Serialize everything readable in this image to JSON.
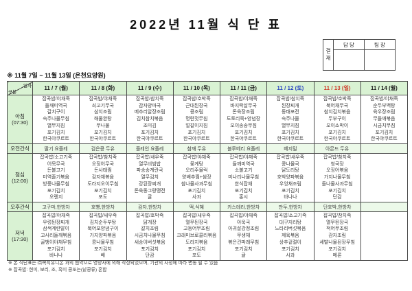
{
  "title": "2022년 11월 식 단 표",
  "approval": {
    "stamp_label": "결재",
    "columns": [
      "담 당",
      "팀 장"
    ]
  },
  "week_note": "※ 11월 7일 ~ 11월 13일 (은천요양원)",
  "colors": {
    "header_green": "#d9f2d3",
    "snack_green": "#ecf9e9",
    "saturday_blue": "#2b46c0",
    "sunday_red": "#d03a28",
    "border": "#4a4a4a"
  },
  "table": {
    "corner": {
      "top": "일자",
      "bottom": "구분"
    },
    "days": [
      {
        "label": "11 / 7 (월)",
        "color": "#1a1a1a"
      },
      {
        "label": "11 / 8 (화)",
        "color": "#1a1a1a"
      },
      {
        "label": "11 / 9 (수)",
        "color": "#1a1a1a"
      },
      {
        "label": "11 / 10 (목)",
        "color": "#1a1a1a"
      },
      {
        "label": "11 / 11 (금)",
        "color": "#1a1a1a"
      },
      {
        "label": "11 / 12 (토)",
        "color": "#2b46c0"
      },
      {
        "label": "11 / 13 (일)",
        "color": "#d03a28"
      },
      {
        "label": "11 / 14 (월)",
        "color": "#1a1a1a"
      }
    ],
    "rows": [
      {
        "label": "아침",
        "time": "(07:30)",
        "type": "meal",
        "cells": [
          [
            "잡곡밥/야채죽",
            "들깨미역국",
            "갈치구이",
            "숙주나물무침",
            "열무지짐",
            "포기김치",
            "한국야쿠르트"
          ],
          [
            "잡곡밥/야채죽",
            "쇠고기무국",
            "삼치조림",
            "해물완탕",
            "무나물",
            "포기김치",
            "한국야쿠르트"
          ],
          [
            "잡곡밥/참치죽",
            "감자양파국",
            "메추리알장조림",
            "김치참치볶음",
            "조미김",
            "포기김치",
            "한국야쿠르트"
          ],
          [
            "잡곡밥/호박죽",
            "근대된장국",
            "콩조림",
            "명란젓무침",
            "얼갈이지짐",
            "포기김치",
            "한국야쿠르트"
          ],
          [
            "잡곡밥/야채죽",
            "바지락살무국",
            "돈육장조림",
            "도토리묵+양념장",
            "오이송송무침",
            "포기김치",
            "한국야쿠르트"
          ],
          [
            "잡곡밥/참치죽",
            "된장찌개",
            "동태포전",
            "숙주나물",
            "열무지짐",
            "포기김치",
            "한국야쿠르트"
          ],
          [
            "잡곡밥/호박죽",
            "북어채무국",
            "참치김치볶음",
            "두부구이",
            "오이소박이",
            "포기김치",
            "한국야쿠르트"
          ],
          [
            "잡곡밥/야채죽",
            "순두부백탕",
            "육우장조림",
            "무들깨볶음",
            "시금치무침",
            "포기김치",
            "한국야쿠르트"
          ]
        ]
      },
      {
        "label": "오전간식",
        "type": "snack",
        "cells": [
          "딸기 요플레",
          "검은콩 두유",
          "플레인 요플레",
          "참깨 두유",
          "블루베리 요플레",
          "베지밀",
          "아몬드 두유",
          ""
        ]
      },
      {
        "label": "점심",
        "time": "(12:00)",
        "type": "meal",
        "cells": [
          [
            "잡곡밥/소고기죽",
            "어묵무국",
            "돈불고기",
            "미역줄기볶음",
            "방풍나물무침",
            "포기김치",
            "오렌지"
          ],
          [
            "잡곡밥/참치죽",
            "오징어무국",
            "돈사태찜",
            "감자채볶음",
            "도라지오이무침",
            "포기김치",
            "포도"
          ],
          [
            "잡곡밥/새우죽",
            "열무비빔밥",
            "파송송계란국",
            "열무김치",
            "강된장찌개",
            "돈육동그랑땡전",
            "귤"
          ],
          [
            "잡곡밥/야채죽",
            "옻계탕",
            "오리주물럭",
            "양배추찜+쌈장",
            "참나물사과무침",
            "포기김치",
            "사과"
          ],
          [
            "잡곡밥/야채죽",
            "들깨미역국",
            "소불고기",
            "미나리나물무침",
            "한식잡채",
            "포기김치",
            "홍시"
          ],
          [
            "잡곡밥/새우죽",
            "콩나물국",
            "닭도리탕",
            "호박양파볶음",
            "우엉채조림",
            "포기김치",
            "바나나"
          ],
          [
            "잡곡밥/참치죽",
            "청국장",
            "오징어볶음",
            "가지나물무침",
            "돌나물사과무침",
            "포기김치",
            "단감"
          ],
          []
        ]
      },
      {
        "label": "오후간식",
        "type": "snack",
        "cells": [
          "고구마,한방차",
          "호빵,한방차",
          "감자,한방차",
          "떡,식혜",
          "카스테라,한방차",
          "만두,한방차",
          "단호박,한방차",
          ""
        ]
      },
      {
        "label": "저녁",
        "time": "(17:30)",
        "type": "meal",
        "cells": [
          [
            "잡곡밥/야채죽",
            "우렁된장찌개",
            "삼색계란말이",
            "고사리들깨볶음",
            "골뱅이야채무침",
            "포기김치",
            "바나나"
          ],
          [
            "잡곡밥/새우죽",
            "김치순두부탕",
            "북어포양념구이",
            "가지양파볶음",
            "콩나물무침",
            "포기김치",
            "배"
          ],
          [
            "잡곡밥/호박죽",
            "닭개장",
            "갈치조림",
            "시금치나물무침",
            "새송이버섯볶음",
            "포기김치",
            "단감"
          ],
          [
            "잡곡밥/새우죽",
            "열무된장국",
            "고등어무조림",
            "크래미브로콜리볶음",
            "도라지볶음",
            "포기김치",
            "포도"
          ],
          [
            "잡곡밥/야채죽",
            "아욱국",
            "아귀살강정조림",
            "무생채",
            "볶은건파래무침",
            "포기김치",
            "귤"
          ],
          [
            "잡곡밥/소고기죽",
            "대구지리탕",
            "느타리버섯볶음",
            "제육볶음",
            "상추겉절이",
            "포기김치",
            "사과"
          ],
          [
            "잡곡밥/참치죽",
            "열무된장국",
            "적어무조림",
            "감자조림",
            "세발나물된장무침",
            "포기김치",
            "메론"
          ],
          []
        ]
      }
    ]
  },
  "footnotes": [
    "※ 본 식단표는 ㈜복지유니온 과의 협약으로 영양사에 의해 작성되었으며, 기관의 사정에 따라 변동 될 수 있음",
    "※ 잡곡밥: 현미, 보리, 조, 흑미 콩또는(낱콩류) 혼합"
  ]
}
